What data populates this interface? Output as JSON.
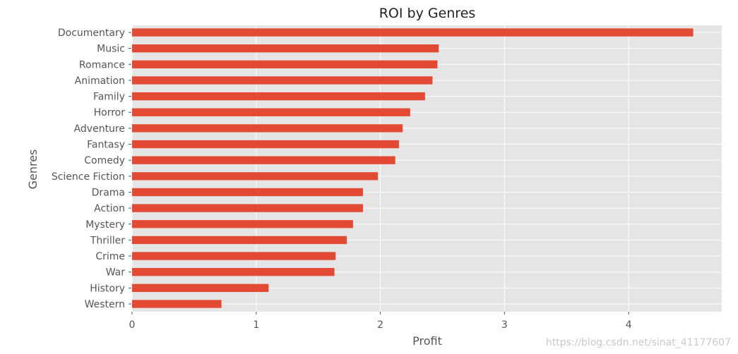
{
  "chart_data": {
    "type": "bar",
    "orientation": "horizontal",
    "title": "ROI by Genres",
    "xlabel": "Profit",
    "ylabel": "Genres",
    "categories": [
      "Documentary",
      "Music",
      "Romance",
      "Animation",
      "Family",
      "Horror",
      "Adventure",
      "Fantasy",
      "Comedy",
      "Science Fiction",
      "Drama",
      "Action",
      "Mystery",
      "Thriller",
      "Crime",
      "War",
      "History",
      "Western"
    ],
    "values": [
      4.52,
      2.47,
      2.46,
      2.42,
      2.36,
      2.24,
      2.18,
      2.15,
      2.12,
      1.98,
      1.86,
      1.86,
      1.78,
      1.73,
      1.64,
      1.63,
      1.1,
      0.72
    ],
    "xticks": [
      "0",
      "1",
      "2",
      "3",
      "4"
    ],
    "xlim": [
      0,
      4.75
    ],
    "grid": true,
    "bar_color": "#E24A33",
    "background_color": "#E5E5E5"
  },
  "watermark": "https://blog.csdn.net/sinat_41177607"
}
